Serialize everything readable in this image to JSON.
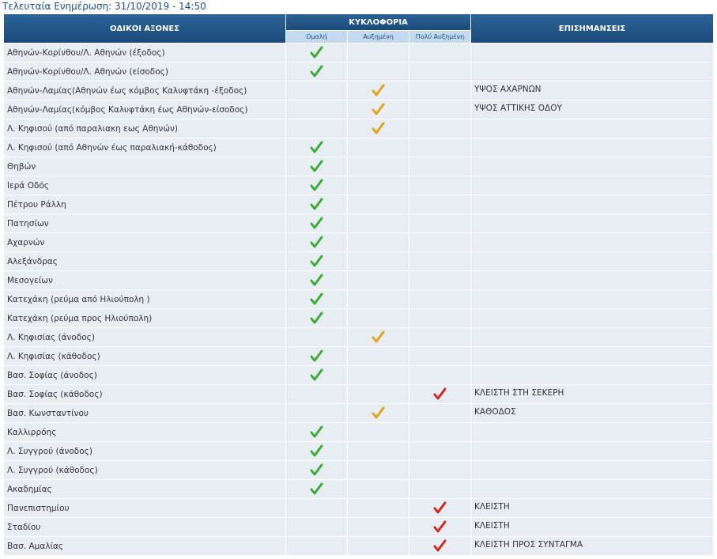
{
  "header": {
    "title": "Τελευταία Ενημέρωση: 31/10/2019 - 14:50"
  },
  "table": {
    "columns": {
      "road": "ΟΔΙΚΟΙ ΑΞΟΝΕΣ",
      "traffic": "ΚΥΚΛΟΦΟΡΙΑ",
      "notes": "ΕΠΙΣΗΜΑΝΣΕΙΣ"
    },
    "levels": [
      "Ομαλή",
      "Αυξημένη",
      "Πολύ Αυξημένη"
    ],
    "level_colors": [
      "#3aae34",
      "#e2a514",
      "#d2261b"
    ],
    "rows": [
      {
        "road": "Αθηνών-Κορίνθου/Λ. Αθηνών (έξοδος)",
        "level": 0
      },
      {
        "road": "Αθηνών-Κορίνθου/Λ. Αθηνών (είσοδος)",
        "level": 0
      },
      {
        "road": "Αθηνών-Λαμίας(Αθηνών έως κόμβος Καλυφτάκη -έξοδος)",
        "level": 1,
        "note": "ΥΨΟΣ ΑΧΑΡΝΩΝ"
      },
      {
        "road": "Αθηνών-Λαμίας(κόμβος Καλυφτάκη έως Αθηνών-είσοδος)",
        "level": 1,
        "note": "ΥΨΟΣ ΑΤΤΙΚΗΣ ΟΔΟΥ"
      },
      {
        "road": "Λ. Κηφισού (από παραλιακη εως Αθηνών)",
        "level": 1
      },
      {
        "road": "Λ. Κηφισού (από Αθηνών έως παραλιακή-κάθοδος)",
        "level": 0
      },
      {
        "road": "Θηβών",
        "level": 0
      },
      {
        "road": "Ιερά Οδός",
        "level": 0
      },
      {
        "road": "Πέτρου Ράλλη",
        "level": 0
      },
      {
        "road": "Πατησίων",
        "level": 0
      },
      {
        "road": "Αχαρνών",
        "level": 0
      },
      {
        "road": "Αλεξάνδρας",
        "level": 0
      },
      {
        "road": "Μεσογείων",
        "level": 0
      },
      {
        "road": "Κατεχάκη (ρεύμα από Ηλιούπολη )",
        "level": 0
      },
      {
        "road": "Κατεχάκη (ρεύμα προς Ηλιούπολη)",
        "level": 0
      },
      {
        "road": "Λ. Κηφισίας (άνοδος)",
        "level": 1
      },
      {
        "road": "Λ. Κηφισίας (κάθοδος)",
        "level": 0
      },
      {
        "road": "Βασ. Σοφίας (άνοδος)",
        "level": 0
      },
      {
        "road": "Βασ. Σοφίας (κάθοδος)",
        "level": 2,
        "note": "ΚΛΕΙΣΤΗ ΣΤΗ ΣΕΚΕΡΗ"
      },
      {
        "road": "Βασ. Κωνσταντίνου",
        "level": 1,
        "note": "ΚΑΘΟΔΟΣ"
      },
      {
        "road": "Καλλιρρόης",
        "level": 0
      },
      {
        "road": "Λ. Συγγρού (άνοδος)",
        "level": 0
      },
      {
        "road": "Λ. Συγγρού (κάθοδος)",
        "level": 0
      },
      {
        "road": "Ακαδημίας",
        "level": 0
      },
      {
        "road": "Πανεπιστημίου",
        "level": 2,
        "note": "ΚΛΕΙΣΤΗ"
      },
      {
        "road": "Σταδίου",
        "level": 2,
        "note": "ΚΛΕΙΣΤΗ"
      },
      {
        "road": "Βασ. Αμαλίας",
        "level": 2,
        "note": "ΚΛΕΙΣΤΗ ΠΡΟΣ ΣΥΝΤΑΓΜΑ"
      }
    ]
  }
}
